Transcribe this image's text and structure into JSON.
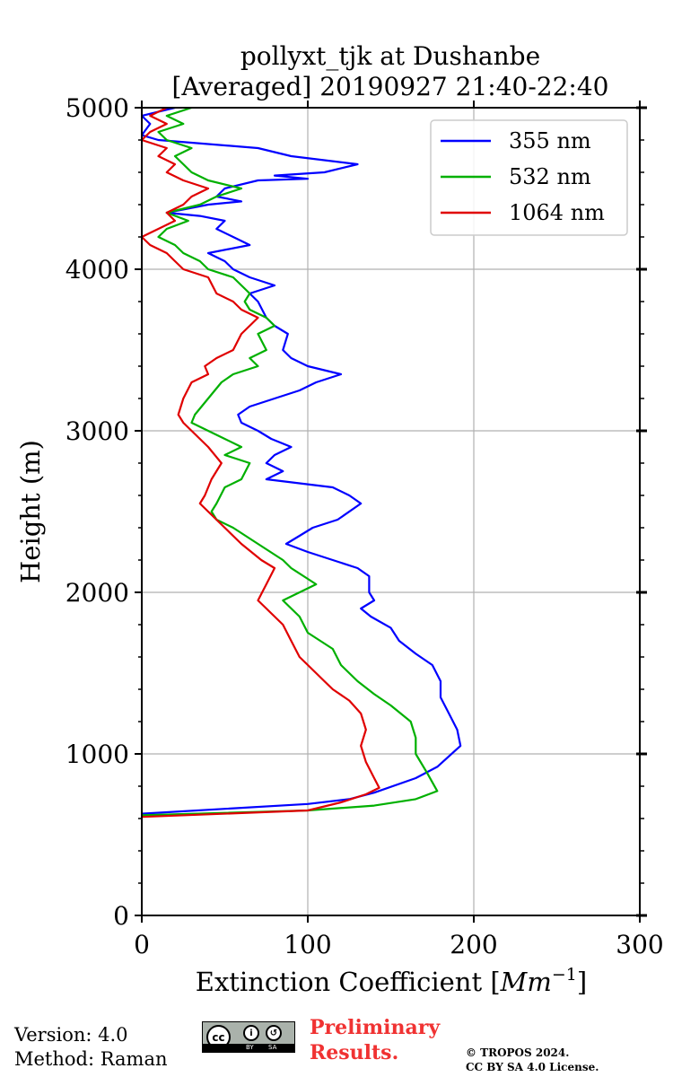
{
  "chart_data": {
    "type": "line",
    "orientation": "vertical-profile",
    "title_line1": "pollyxt_tjk at Dushanbe",
    "title_line2": "[Averaged] 20190927 21:40-22:40",
    "xlabel_prefix": "Extinction Coefficient [",
    "xlabel_unit_base": "Mm",
    "xlabel_unit_exp": "−1",
    "xlabel_suffix": "]",
    "ylabel": "Height (m)",
    "xlim": [
      0,
      300
    ],
    "ylim": [
      0,
      5000
    ],
    "xticks": [
      0,
      100,
      200,
      300
    ],
    "yticks": [
      0,
      1000,
      2000,
      3000,
      4000,
      5000
    ],
    "grid": true,
    "legend_position": "top-right",
    "series": [
      {
        "name": "355 nm",
        "color": "#0000ff",
        "points": [
          [
            0,
            630
          ],
          [
            100,
            690
          ],
          [
            125,
            720
          ],
          [
            140,
            760
          ],
          [
            165,
            850
          ],
          [
            178,
            920
          ],
          [
            192,
            1050
          ],
          [
            190,
            1150
          ],
          [
            185,
            1250
          ],
          [
            180,
            1350
          ],
          [
            180,
            1450
          ],
          [
            175,
            1550
          ],
          [
            165,
            1620
          ],
          [
            155,
            1700
          ],
          [
            150,
            1780
          ],
          [
            138,
            1850
          ],
          [
            132,
            1900
          ],
          [
            140,
            1950
          ],
          [
            137,
            2000
          ],
          [
            137,
            2100
          ],
          [
            130,
            2150
          ],
          [
            115,
            2200
          ],
          [
            100,
            2250
          ],
          [
            87,
            2300
          ],
          [
            95,
            2350
          ],
          [
            103,
            2400
          ],
          [
            118,
            2450
          ],
          [
            132,
            2550
          ],
          [
            125,
            2600
          ],
          [
            115,
            2650
          ],
          [
            75,
            2700
          ],
          [
            85,
            2750
          ],
          [
            75,
            2800
          ],
          [
            80,
            2850
          ],
          [
            90,
            2900
          ],
          [
            78,
            2950
          ],
          [
            70,
            3000
          ],
          [
            60,
            3050
          ],
          [
            58,
            3100
          ],
          [
            65,
            3150
          ],
          [
            80,
            3200
          ],
          [
            95,
            3250
          ],
          [
            105,
            3300
          ],
          [
            120,
            3350
          ],
          [
            100,
            3400
          ],
          [
            90,
            3450
          ],
          [
            85,
            3500
          ],
          [
            88,
            3600
          ],
          [
            80,
            3650
          ],
          [
            75,
            3700
          ],
          [
            70,
            3800
          ],
          [
            65,
            3850
          ],
          [
            80,
            3900
          ],
          [
            65,
            3950
          ],
          [
            55,
            4000
          ],
          [
            50,
            4050
          ],
          [
            40,
            4100
          ],
          [
            65,
            4150
          ],
          [
            55,
            4200
          ],
          [
            45,
            4250
          ],
          [
            50,
            4300
          ],
          [
            35,
            4330
          ],
          [
            15,
            4350
          ],
          [
            40,
            4400
          ],
          [
            60,
            4420
          ],
          [
            45,
            4450
          ],
          [
            50,
            4500
          ],
          [
            70,
            4550
          ],
          [
            100,
            4560
          ],
          [
            80,
            4580
          ],
          [
            110,
            4600
          ],
          [
            130,
            4650
          ],
          [
            90,
            4700
          ],
          [
            70,
            4750
          ],
          [
            10,
            4800
          ],
          [
            0,
            4830
          ],
          [
            5,
            4900
          ],
          [
            0,
            4950
          ],
          [
            20,
            5000
          ]
        ]
      },
      {
        "name": "532 nm",
        "color": "#00b000",
        "points": [
          [
            0,
            620
          ],
          [
            100,
            650
          ],
          [
            140,
            680
          ],
          [
            165,
            720
          ],
          [
            178,
            770
          ],
          [
            172,
            880
          ],
          [
            165,
            1000
          ],
          [
            165,
            1100
          ],
          [
            162,
            1200
          ],
          [
            150,
            1300
          ],
          [
            140,
            1370
          ],
          [
            130,
            1450
          ],
          [
            120,
            1550
          ],
          [
            115,
            1650
          ],
          [
            100,
            1750
          ],
          [
            95,
            1850
          ],
          [
            85,
            1950
          ],
          [
            105,
            2050
          ],
          [
            90,
            2150
          ],
          [
            85,
            2200
          ],
          [
            70,
            2300
          ],
          [
            55,
            2400
          ],
          [
            45,
            2450
          ],
          [
            42,
            2500
          ],
          [
            45,
            2550
          ],
          [
            50,
            2650
          ],
          [
            60,
            2700
          ],
          [
            65,
            2800
          ],
          [
            50,
            2850
          ],
          [
            60,
            2900
          ],
          [
            50,
            2950
          ],
          [
            40,
            3000
          ],
          [
            30,
            3050
          ],
          [
            32,
            3100
          ],
          [
            40,
            3200
          ],
          [
            48,
            3300
          ],
          [
            55,
            3350
          ],
          [
            70,
            3400
          ],
          [
            65,
            3450
          ],
          [
            75,
            3500
          ],
          [
            70,
            3600
          ],
          [
            80,
            3650
          ],
          [
            75,
            3700
          ],
          [
            65,
            3750
          ],
          [
            62,
            3800
          ],
          [
            65,
            3850
          ],
          [
            55,
            3950
          ],
          [
            40,
            4000
          ],
          [
            35,
            4050
          ],
          [
            25,
            4100
          ],
          [
            20,
            4150
          ],
          [
            10,
            4200
          ],
          [
            15,
            4250
          ],
          [
            28,
            4300
          ],
          [
            15,
            4350
          ],
          [
            35,
            4400
          ],
          [
            45,
            4450
          ],
          [
            60,
            4500
          ],
          [
            40,
            4550
          ],
          [
            30,
            4600
          ],
          [
            25,
            4650
          ],
          [
            20,
            4700
          ],
          [
            30,
            4750
          ],
          [
            15,
            4800
          ],
          [
            10,
            4850
          ],
          [
            25,
            4900
          ],
          [
            15,
            4950
          ],
          [
            30,
            5000
          ]
        ]
      },
      {
        "name": "1064 nm",
        "color": "#e00000",
        "points": [
          [
            0,
            610
          ],
          [
            100,
            650
          ],
          [
            120,
            700
          ],
          [
            135,
            750
          ],
          [
            143,
            790
          ],
          [
            140,
            850
          ],
          [
            135,
            950
          ],
          [
            132,
            1050
          ],
          [
            135,
            1150
          ],
          [
            132,
            1250
          ],
          [
            125,
            1330
          ],
          [
            115,
            1400
          ],
          [
            110,
            1450
          ],
          [
            105,
            1500
          ],
          [
            95,
            1600
          ],
          [
            90,
            1700
          ],
          [
            85,
            1800
          ],
          [
            75,
            1900
          ],
          [
            70,
            1950
          ],
          [
            75,
            2050
          ],
          [
            80,
            2150
          ],
          [
            72,
            2200
          ],
          [
            60,
            2300
          ],
          [
            50,
            2400
          ],
          [
            40,
            2500
          ],
          [
            35,
            2550
          ],
          [
            38,
            2600
          ],
          [
            42,
            2700
          ],
          [
            48,
            2800
          ],
          [
            40,
            2900
          ],
          [
            30,
            3000
          ],
          [
            25,
            3050
          ],
          [
            22,
            3100
          ],
          [
            25,
            3200
          ],
          [
            30,
            3300
          ],
          [
            40,
            3350
          ],
          [
            38,
            3400
          ],
          [
            45,
            3450
          ],
          [
            55,
            3500
          ],
          [
            60,
            3600
          ],
          [
            70,
            3700
          ],
          [
            60,
            3750
          ],
          [
            55,
            3800
          ],
          [
            45,
            3850
          ],
          [
            40,
            3950
          ],
          [
            25,
            4000
          ],
          [
            20,
            4050
          ],
          [
            15,
            4100
          ],
          [
            5,
            4150
          ],
          [
            0,
            4200
          ],
          [
            10,
            4250
          ],
          [
            20,
            4300
          ],
          [
            15,
            4350
          ],
          [
            25,
            4400
          ],
          [
            30,
            4450
          ],
          [
            40,
            4500
          ],
          [
            25,
            4550
          ],
          [
            15,
            4600
          ],
          [
            20,
            4650
          ],
          [
            10,
            4700
          ],
          [
            15,
            4750
          ],
          [
            0,
            4800
          ],
          [
            5,
            4850
          ],
          [
            15,
            4900
          ],
          [
            5,
            4950
          ],
          [
            15,
            5000
          ]
        ]
      }
    ]
  },
  "footer": {
    "version": "Version: 4.0",
    "method": "Method: Raman",
    "preliminary_line1": "Preliminary",
    "preliminary_line2": "Results.",
    "copyright_line1": "© TROPOS 2024.",
    "copyright_line2": "CC BY SA 4.0 License.",
    "license_badge": "cc",
    "license_by": "BY",
    "license_sa": "SA",
    "preliminary_color": "#f03232"
  }
}
